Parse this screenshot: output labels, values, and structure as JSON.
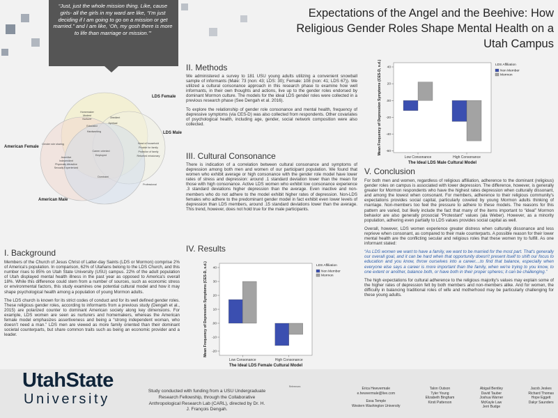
{
  "title": "Expectations of the Angel and the Beehive: How Religious Gender Roles Shape Mental Health on a Utah Campus",
  "quote": "“Just, just the whole mission thing. Like, cause girls- all the girls in my ward are like, “I’m just deciding if I am going to go on a mission or get married.” and I am like, ‘Oh, my gosh there is more to life than marriage or mission.’”",
  "venn": {
    "circles": [
      "LDS Female",
      "LDS Male",
      "American Female",
      "American Male"
    ],
    "traits": [
      "Homemaker",
      "Modest",
      "Nurturer",
      "Obedient",
      "Spiritual",
      "Educated",
      "Hardworking",
      "Gender role sharing",
      "Head of household",
      "Provide for family",
      "Protector of family",
      "Returned missionary",
      "Career oriented",
      "Employed",
      "Assertive",
      "Independent",
      "Physically Attractive",
      "Sexually Experienced",
      "Dominant",
      "Professional"
    ]
  },
  "background": {
    "heading": "I. Background",
    "paragraphs": [
      "Members of the Church of Jesus Christ of Latter-day Saints (LDS or Mormon) comprise 2% of America's population. In comparison, 62% of Utahans belong to the LDS Church, and this number rises to 85% on Utah State University (USU) campus. 22% of the adult population of Utah displayed mental health illness in the past year as opposed to America's overall 18%. While this difference could stem from a number of sources, such as economic stress or environmental factors, this study examines one potential cultural model and how it may shape psychological health among a population of young Mormon adults.",
      "The LDS church is known for its strict codes of conduct and for its well defined gender roles. These religious gender roles, according to informants from a previous study (Dengah et al., 2015) are polarized counter to dominant American society along key dimensions. For example, LDS women are seen as nurturers and homemakers, whereas the American female model emphasizes assertiveness and being a “strong independent woman, who doesn’t need a man.” LDS men are viewed as more family oriented than their dominant societal counterparts, but share common traits such as being an economic provider and a leader."
    ]
  },
  "methods": {
    "heading": "II. Methods",
    "paragraphs": [
      "We administered a survey to 181 USU young adults utilizing a convenient snowball sample of informants (Male: 73 (non: 43; LDS: 30); Female: 108 (non: 41; LDS 67)). We utilized a cultural consonance approach in this research phase to examine how well informants, in their own thoughts and actions, live up to the gender roles endorsed by dominant Mormon culture. The models for the ideal LDS gender roles were collected in a previous research phase (See Dengah et al. 2016).",
      "To explore the relationship of gender role consonance and mental health, frequency of depressive symptoms (via CES-D) was also collected from respondents. Other covariates of psychological health, including age, gender, social network composition were also collected."
    ]
  },
  "consonance": {
    "heading": "III. Cultural Consonance",
    "paragraphs": [
      "There is indication of a correlation between cultural consonance and symptoms of depression among both men and women of our participant population. We found that women who exhibit average or high consonance with the gender role model have lower rates of stress and depression: around .1 standard deviation lower than the mean for those with high consonance. Active LDS women who exhibit low consonance experience .3 standard deviations higher depression than the average. Even inactive and non-members who do not adhere to the model exhibit higher rates of depression. Non-LDS females who adhere to the predominant gender model in fact exhibit even lower levels of depression than LDS members, around .15 standard deviations lower than the average. This trend, however, does not hold true for the male participants."
    ]
  },
  "results": {
    "heading": "IV. Results"
  },
  "conclusion": {
    "heading": "V. Conclusion",
    "paragraphs": [
      "For both men and women, regardless of religious affiliation, adherence to the dominant (religious) gender roles on campus is associated with lower depression. The difference, however, is generally greater for Mormon respondents who have the highest rates depression when culturally dissonant, and among the lowest when consonant. For members, adherence to their religious community's expectations provides social capital, particularly coveted by young Mormon adults thinking of marriage. Non-members too feel the pressure to adhere to these models. The reasons for this pattern are varied, but likely include the fact that many of the items important to “ideal” Mormon behavior are also generally prosocial “Protestant” values (ala Weber). However, as a minority population, adhering even partially to LDS values provides social capital as well.",
      "Overall, however, LDS women experience greater distress when culturally dissonance and less reprieve when consonant, as compared to their male counterparts. A possible reason for their lower mental health are the conflicting secular and religious roles that these women try to fulfill. As one informant stated:"
    ],
    "quote": "“As LDS women we want to have a family, we want to be married for the most part. That's generally our overall goal, and it can be hard when that opportunity doesn't present itself to shift our focus to education and you know, throw ourselves into a career....to find that balance, especially when everyone else says a career is more important than the family, when we're trying to you know, to one extent or another, balance both, or have both in their proper spheres; it can be challenging.”",
    "closing": "The high expectations for cultural adherence to the religious majority's values may explain some of the higher rates of depression felt by both members and non-members alike. And for women, the difficulty in balancing traditional roles of wife and motherhood may be particularly challenging for these young adults."
  },
  "footer": {
    "logo": [
      "UtahState",
      "University"
    ],
    "funding": "Study conducted with funding from a USU Undergraduate Research Fellowship, through the Collaborative Anthropological Research Lab (CARL), directed by Dr. H. J. François Dengah.",
    "references_heading": "References",
    "team": [
      [
        "Erica Hewvermale",
        "e.hewvermale@live.com",
        "Essa Temple",
        "Western Washington University"
      ],
      [
        "Talon Outson",
        "Tyler Young",
        "Elizabeth Bingham",
        "Kirsti Patterson"
      ],
      [
        "Abigail Bentley",
        "David Tauber",
        "Joshua Warner",
        "McKayle Law",
        "Jerri Budge"
      ],
      [
        "Jacob Jeskes",
        "Richard Thomas",
        "Hope Eggett",
        "Dakyr Saunders"
      ]
    ]
  },
  "chart_data": [
    {
      "type": "bar",
      "x_label": "The Ideal LDS Female Cultural Model",
      "y_label": "Mean Frequency of Depression Symptoms (CES-D, s.d.)",
      "legend_title": "LDS Affiliation",
      "legend": "right",
      "categories": [
        "Low Consonance",
        "High Consonance"
      ],
      "series": [
        {
          "name": "Non Member",
          "color": "#3b4fb0",
          "values": [
            17,
            -16
          ]
        },
        {
          "name": "Mormon",
          "color": "#a3a3a3",
          "values": [
            30,
            -8
          ]
        }
      ],
      "ylim": [
        -23,
        43
      ],
      "yticks": [
        -20,
        -10,
        {
          "value": 0,
          "label": ".00"
        },
        10,
        20,
        30,
        40
      ]
    },
    {
      "type": "bar",
      "x_label": "The Ideal LDS Male Cultural Model",
      "y_label": "Mean Frequency of Depression Symptoms (CES-D, s.d.)",
      "legend_title": "LDS Affiliation",
      "legend": "right",
      "categories": [
        "Low Consonance",
        "High Consonance"
      ],
      "series": [
        {
          "name": "Non Member",
          "color": "#3b4fb0",
          "values": [
            -12,
            -25
          ]
        },
        {
          "name": "Mormon",
          "color": "#a3a3a3",
          "values": [
            22,
            -48
          ]
        }
      ],
      "ylim": [
        -62,
        45
      ],
      "yticks": [
        -60,
        -40,
        -20,
        {
          "value": 0,
          "label": ".00"
        },
        20,
        40
      ]
    }
  ]
}
